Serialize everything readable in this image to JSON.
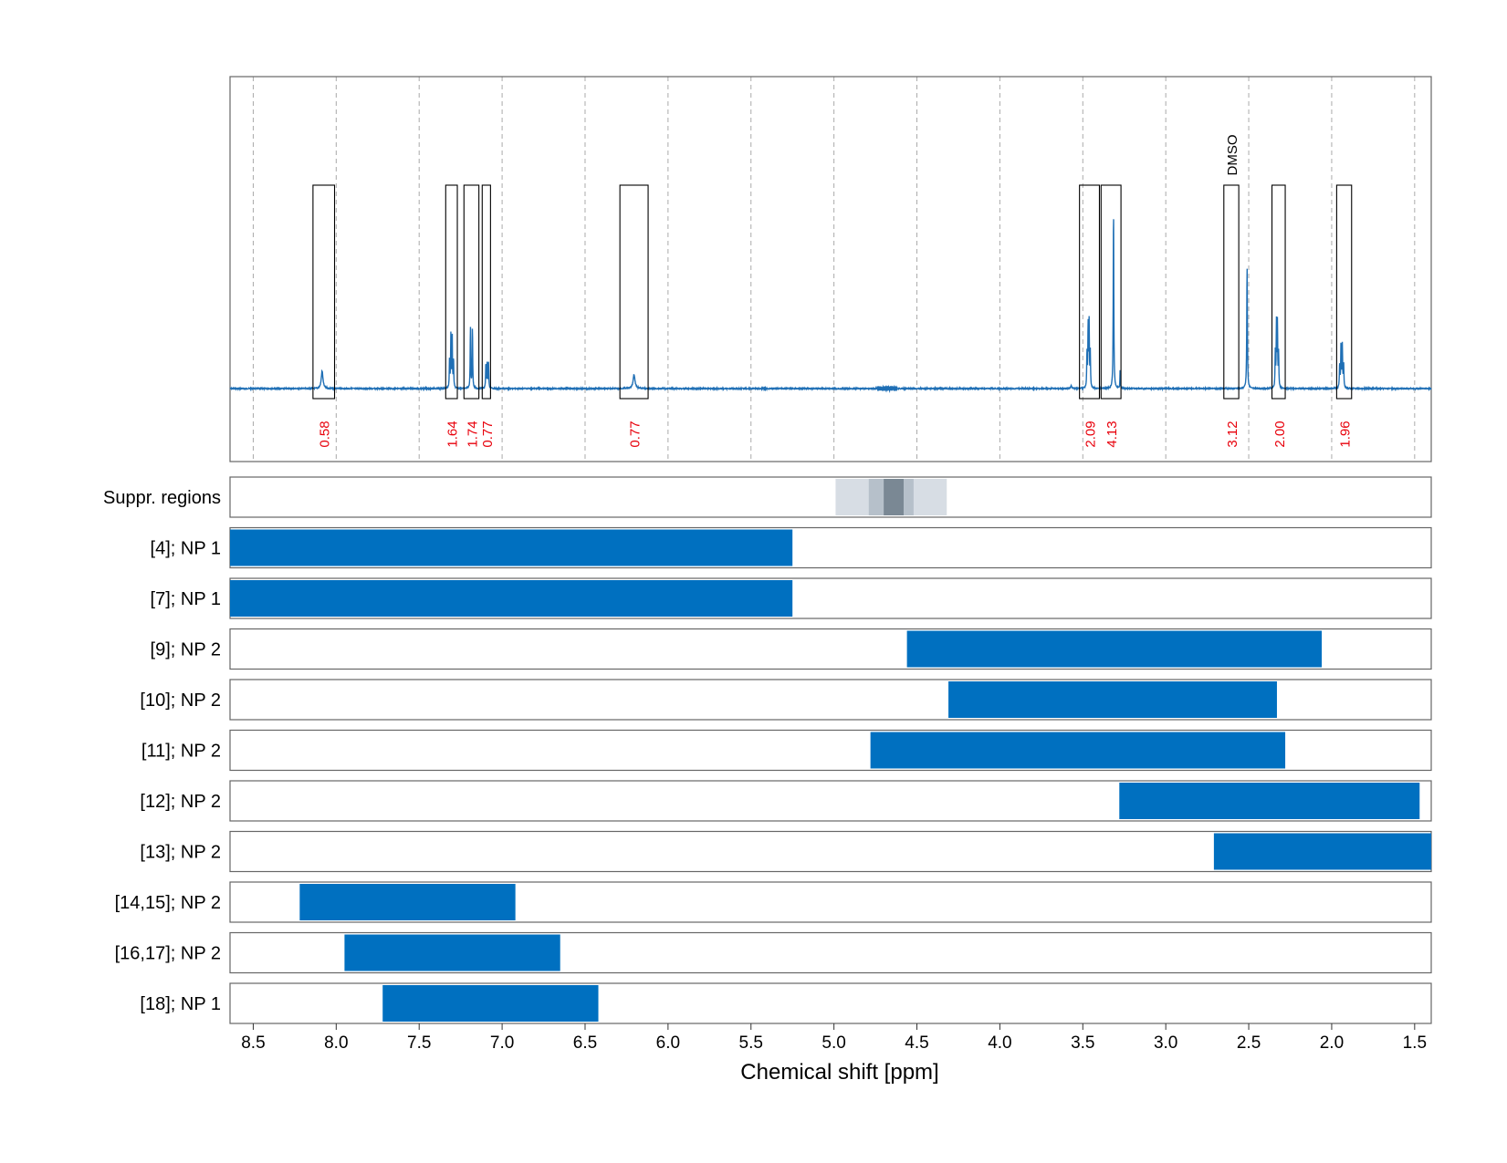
{
  "chart_data": {
    "type": "nmr-spectrum-with-region-bars",
    "xlabel": "Chemical shift [ppm]",
    "xlim": [
      8.64,
      1.4
    ],
    "x_reversed": true,
    "xticks": [
      8.5,
      8.0,
      7.5,
      7.0,
      6.5,
      6.0,
      5.5,
      5.0,
      4.5,
      4.0,
      3.5,
      3.0,
      2.5,
      2.0,
      1.5
    ],
    "xtick_labels": [
      "8.5",
      "8.0",
      "7.5",
      "7.0",
      "6.5",
      "6.0",
      "5.5",
      "5.0",
      "4.5",
      "4.0",
      "3.5",
      "3.0",
      "2.5",
      "2.0",
      "1.5"
    ],
    "grid": "vertical dashed lines at 0.5 ppm intervals in spectrum panel",
    "colors": {
      "spectrum": "#1f6fb5",
      "bar": "#0070c0",
      "integral_label": "#e8000b",
      "frame": "#666666",
      "grid": "#aaaaaa"
    },
    "spectrum": {
      "peaks": [
        {
          "shift": 8.085,
          "height": 0.09,
          "width": 0.006,
          "mult": [
            0
          ]
        },
        {
          "shift": 7.305,
          "height": 0.27,
          "width": 0.0018,
          "mult": [
            -0.012,
            -0.004,
            0.004,
            0.012
          ]
        },
        {
          "shift": 7.185,
          "height": 0.32,
          "width": 0.0018,
          "mult": [
            -0.006,
            0.006
          ]
        },
        {
          "shift": 7.09,
          "height": 0.13,
          "width": 0.0018,
          "mult": [
            -0.008,
            0,
            0.008
          ]
        },
        {
          "shift": 6.205,
          "height": 0.07,
          "width": 0.007,
          "mult": [
            0
          ]
        },
        {
          "shift": 3.57,
          "height": 0.015,
          "width": 0.004,
          "mult": [
            0
          ]
        },
        {
          "shift": 3.465,
          "height": 0.33,
          "width": 0.0018,
          "mult": [
            -0.01,
            -0.003,
            0.003,
            0.01
          ]
        },
        {
          "shift": 3.315,
          "height": 0.94,
          "width": 0.002,
          "mult": [
            0
          ]
        },
        {
          "shift": 3.275,
          "height": 0.1,
          "width": 0.0015,
          "mult": [
            0
          ]
        },
        {
          "shift": 2.51,
          "height": 0.63,
          "width": 0.0022,
          "mult": [
            0
          ]
        },
        {
          "shift": 2.33,
          "height": 0.33,
          "width": 0.0018,
          "mult": [
            -0.01,
            -0.003,
            0.003,
            0.01
          ]
        },
        {
          "shift": 1.94,
          "height": 0.22,
          "width": 0.002,
          "mult": [
            -0.012,
            -0.004,
            0.004,
            0.012
          ]
        }
      ],
      "water_region": 4.68
    },
    "integral_regions": [
      {
        "from": 8.14,
        "to": 8.01,
        "label": "0.58"
      },
      {
        "from": 7.34,
        "to": 7.27,
        "label": "1.64"
      },
      {
        "from": 7.23,
        "to": 7.14,
        "label": "1.74"
      },
      {
        "from": 7.12,
        "to": 7.07,
        "label": "0.77"
      },
      {
        "from": 6.29,
        "to": 6.12,
        "label": "0.77"
      },
      {
        "from": 3.52,
        "to": 3.4,
        "label": "2.09"
      },
      {
        "from": 3.39,
        "to": 3.27,
        "label": "4.13"
      },
      {
        "from": 2.65,
        "to": 2.56,
        "label": "3.12",
        "annotation": "DMSO"
      },
      {
        "from": 2.36,
        "to": 2.28,
        "label": "2.00"
      },
      {
        "from": 1.97,
        "to": 1.88,
        "label": "1.96"
      }
    ],
    "suppressed_regions": [
      {
        "from": 4.99,
        "to": 4.32,
        "level": 1
      },
      {
        "from": 4.79,
        "to": 4.52,
        "level": 2
      },
      {
        "from": 4.7,
        "to": 4.58,
        "level": 3
      }
    ],
    "rows": [
      {
        "label": "Suppr. regions",
        "bar": null
      },
      {
        "label": "[4]; NP 1",
        "bar": [
          8.64,
          5.25
        ]
      },
      {
        "label": "[7]; NP 1",
        "bar": [
          8.64,
          5.25
        ]
      },
      {
        "label": "[9]; NP 2",
        "bar": [
          4.56,
          2.06
        ]
      },
      {
        "label": "[10]; NP 2",
        "bar": [
          4.31,
          2.33
        ]
      },
      {
        "label": "[11]; NP 2",
        "bar": [
          4.78,
          2.28
        ]
      },
      {
        "label": "[12]; NP 2",
        "bar": [
          3.28,
          1.47
        ]
      },
      {
        "label": "[13]; NP 2",
        "bar": [
          2.71,
          1.4
        ]
      },
      {
        "label": "[14,15]; NP 2",
        "bar": [
          8.22,
          6.92
        ]
      },
      {
        "label": "[16,17]; NP 2",
        "bar": [
          7.95,
          6.65
        ]
      },
      {
        "label": "[18]; NP 1",
        "bar": [
          7.72,
          6.42
        ]
      }
    ]
  }
}
